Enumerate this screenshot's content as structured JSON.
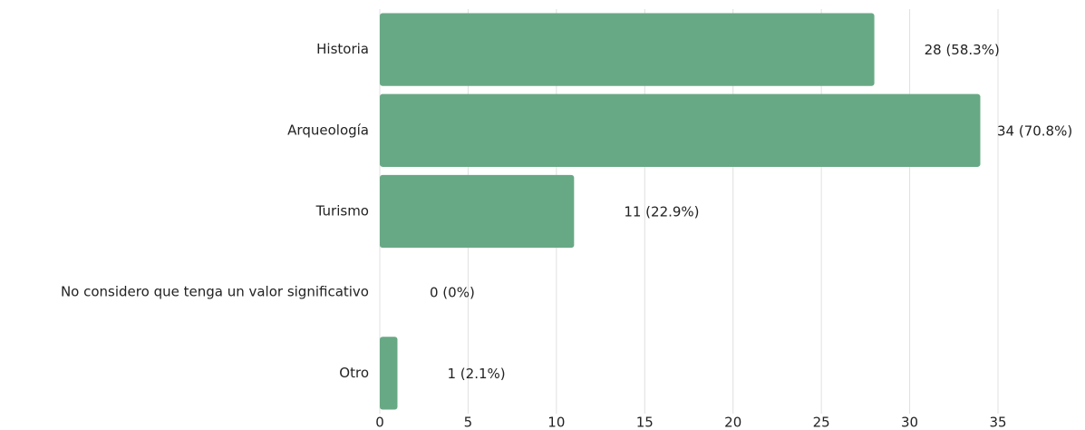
{
  "chart_data": {
    "type": "bar",
    "orientation": "horizontal",
    "categories": [
      "Historia",
      "Arqueología",
      "Turismo",
      "No considero que tenga un valor significativo",
      "Otro"
    ],
    "values": [
      28,
      34,
      11,
      0,
      1
    ],
    "value_labels": [
      "28 (58.3%)",
      "34 (70.8%)",
      "11 (22.9%)",
      "0 (0%)",
      "1  (2.1%)"
    ],
    "color": "#68a985",
    "xlim": [
      0,
      35
    ],
    "xticks": [
      0,
      5,
      10,
      15,
      20,
      25,
      30,
      35
    ],
    "grid": true
  }
}
